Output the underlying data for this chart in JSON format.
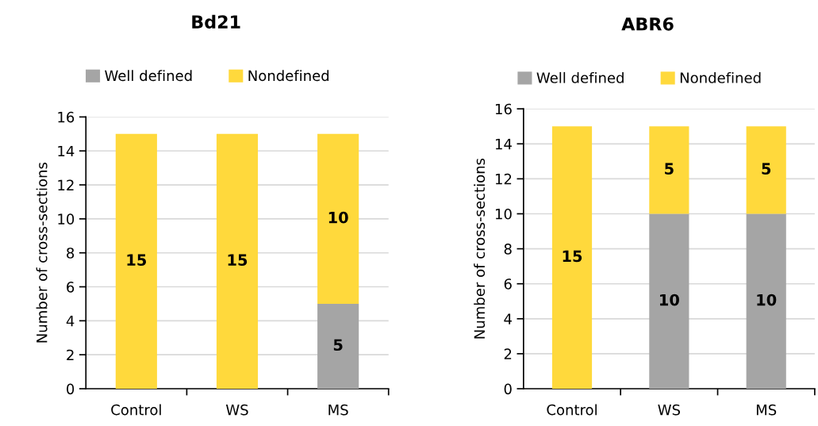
{
  "chart_data": [
    {
      "type": "bar",
      "title": "Bd21",
      "ylabel": "Number of cross-sections",
      "categories": [
        "Control",
        "WS",
        "MS"
      ],
      "stacked": true,
      "series": [
        {
          "name": "Well defined",
          "color": "#a5a5a5",
          "values": [
            0,
            0,
            5
          ],
          "value_labels": [
            null,
            null,
            "5"
          ]
        },
        {
          "name": "Nondefined",
          "color": "#ffd93c",
          "values": [
            15,
            15,
            10
          ],
          "value_labels": [
            "15",
            "15",
            "10"
          ]
        }
      ],
      "ylim": [
        0,
        16
      ],
      "yticks": [
        0,
        2,
        4,
        6,
        8,
        10,
        12,
        14,
        16
      ],
      "grid": "y",
      "legend": "top"
    },
    {
      "type": "bar",
      "title": "ABR6",
      "ylabel": "Number of cross-sections",
      "categories": [
        "Control",
        "WS",
        "MS"
      ],
      "stacked": true,
      "series": [
        {
          "name": "Well defined",
          "color": "#a5a5a5",
          "values": [
            0,
            10,
            10
          ],
          "value_labels": [
            null,
            "10",
            "10"
          ]
        },
        {
          "name": "Nondefined",
          "color": "#ffd93c",
          "values": [
            15,
            5,
            5
          ],
          "value_labels": [
            "15",
            "5",
            "5"
          ]
        }
      ],
      "ylim": [
        0,
        16
      ],
      "yticks": [
        0,
        2,
        4,
        6,
        8,
        10,
        12,
        14,
        16
      ],
      "grid": "y",
      "legend": "top"
    }
  ]
}
